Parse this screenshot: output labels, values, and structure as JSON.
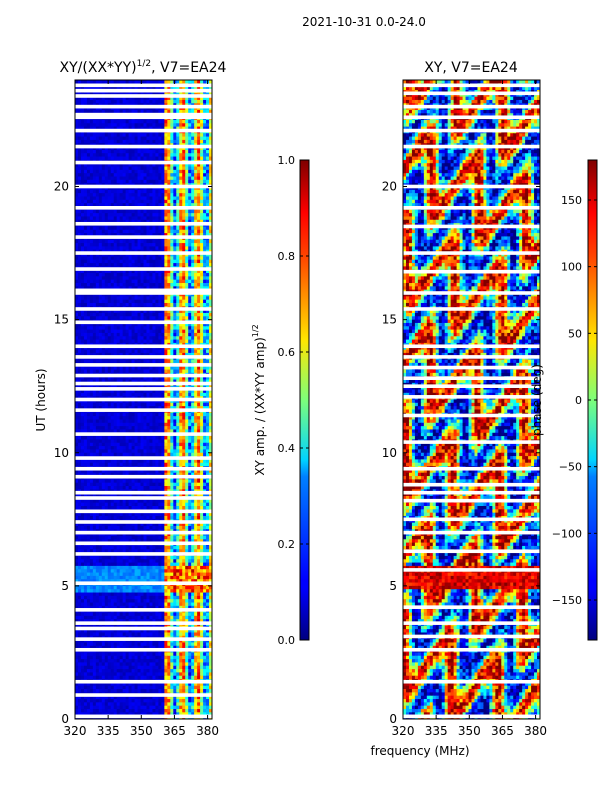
{
  "suptitle": "2021-10-31 0.0-24.0",
  "shared_xlabel": "frequency (MHz)",
  "chart_data": [
    {
      "type": "heatmap",
      "title": "XY/(XX*YY)",
      "title_superscript": "1/2",
      "title_suffix": ", V7=EA24",
      "xlabel": "frequency (MHz)",
      "ylabel": "UT (hours)",
      "xlim": [
        320,
        382
      ],
      "ylim": [
        0,
        24
      ],
      "xticks": [
        320,
        335,
        350,
        365,
        380
      ],
      "yticks": [
        0,
        5,
        10,
        15,
        20
      ],
      "colormap": "jet",
      "colorbar": {
        "label": "XY amp. / (XX*YY amp)",
        "label_superscript": "1/2",
        "range": [
          0.0,
          1.0
        ],
        "ticks": [
          "0.0",
          "0.2",
          "0.4",
          "0.6",
          "0.8",
          "1.0"
        ]
      },
      "low_band_level": 0.05,
      "active_band_mhz": [
        360,
        382
      ],
      "active_band_level": 0.5,
      "event_band_hours": [
        4.7,
        5.8
      ],
      "gap_rows_hours": [
        0.1,
        0.9,
        1.4,
        2.6,
        3.0,
        3.4,
        3.6,
        4.1,
        5.1,
        6.2,
        6.6,
        7.0,
        7.4,
        7.8,
        8.3,
        8.5,
        9.1,
        9.4,
        9.8,
        10.7,
        11.6,
        12.0,
        12.4,
        12.6,
        12.9,
        13.3,
        13.6,
        14.0,
        14.9,
        15.4,
        16.0,
        16.1,
        16.9,
        17.5,
        18.1,
        18.6,
        19.2,
        20.0,
        20.9,
        21.5,
        22.1,
        22.6,
        22.7,
        23.0,
        23.4,
        23.6,
        23.8
      ]
    },
    {
      "type": "heatmap",
      "title": "XY, V7=EA24",
      "xlabel": "frequency (MHz)",
      "ylabel": "",
      "xlim": [
        320,
        382
      ],
      "ylim": [
        0,
        24
      ],
      "xticks": [
        320,
        335,
        350,
        365,
        380
      ],
      "yticks": [
        0,
        5,
        10,
        15,
        20
      ],
      "colormap": "jet",
      "colorbar": {
        "label": "phase (deg)",
        "range": [
          -180,
          180
        ],
        "ticks": [
          "−150",
          "−100",
          "−50",
          "0",
          "50",
          "100",
          "150"
        ],
        "tick_values": [
          -150,
          -100,
          -50,
          0,
          50,
          100,
          150
        ]
      },
      "event_band_hours": [
        4.9,
        5.8
      ],
      "gap_rows_hours": [
        0.1,
        1.4,
        2.6,
        3.1,
        3.6,
        4.2,
        5.6,
        6.3,
        7.0,
        7.5,
        8.2,
        8.5,
        8.8,
        9.4,
        10.4,
        11.4,
        12.1,
        12.5,
        12.8,
        13.2,
        13.6,
        14.0,
        15.4,
        16.0,
        16.8,
        17.5,
        18.5,
        19.2,
        20.0,
        21.5,
        22.1,
        22.6,
        23.0,
        23.5,
        23.8
      ]
    }
  ]
}
